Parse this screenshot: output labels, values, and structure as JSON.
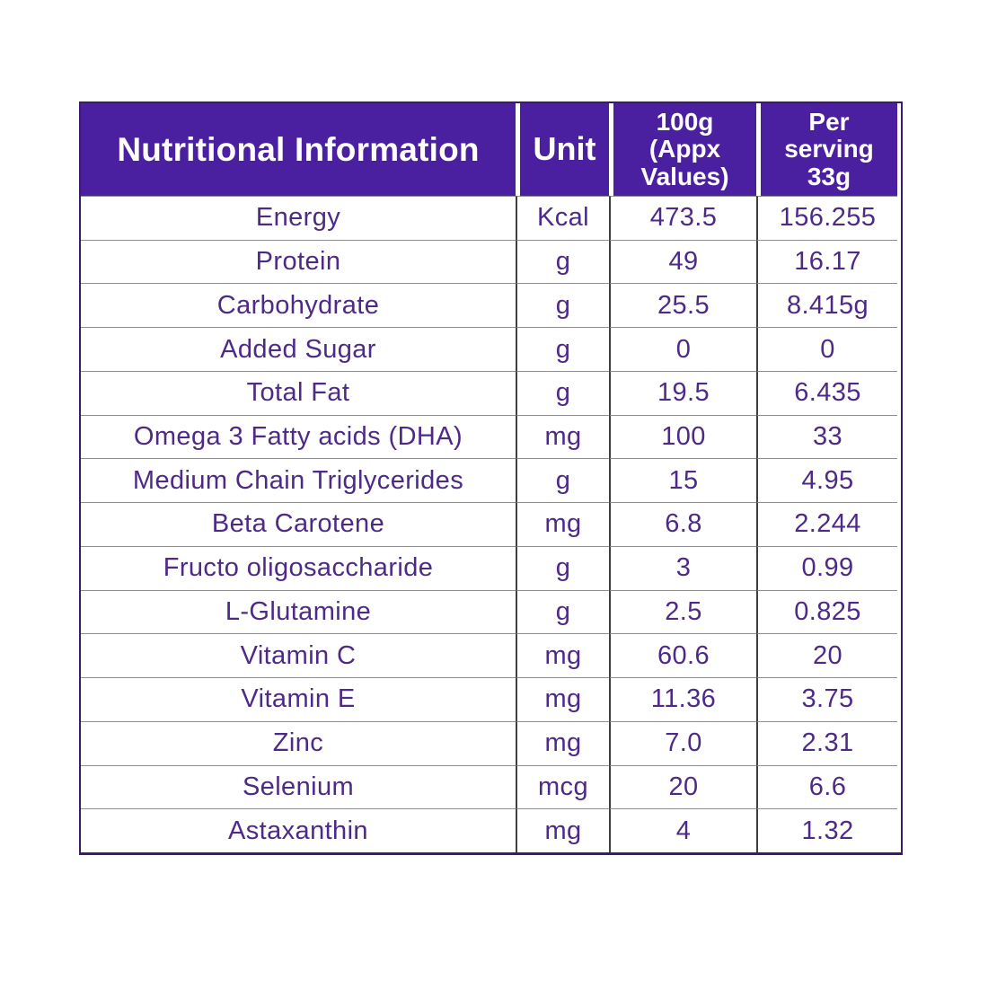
{
  "colors": {
    "header_bg": "#4a1fa0",
    "body_text": "#4e2a87",
    "outer_border": "#3c1a70",
    "row_line": "#8e8e8e",
    "col_line": "#3f3f3f"
  },
  "header": {
    "col1": "Nutritional Information",
    "col2": "Unit",
    "col3": "100g\n(Appx\nValues)",
    "col4": "Per\nserving\n33g"
  },
  "rows": [
    {
      "name": "Energy",
      "unit": "Kcal",
      "per100g": "473.5",
      "per_serving": "156.255"
    },
    {
      "name": "Protein",
      "unit": "g",
      "per100g": "49",
      "per_serving": "16.17"
    },
    {
      "name": "Carbohydrate",
      "unit": "g",
      "per100g": "25.5",
      "per_serving": "8.415g"
    },
    {
      "name": "Added Sugar",
      "unit": "g",
      "per100g": "0",
      "per_serving": "0"
    },
    {
      "name": "Total Fat",
      "unit": "g",
      "per100g": "19.5",
      "per_serving": "6.435"
    },
    {
      "name": "Omega 3 Fatty acids (DHA)",
      "unit": "mg",
      "per100g": "100",
      "per_serving": "33"
    },
    {
      "name": "Medium Chain Triglycerides",
      "unit": "g",
      "per100g": "15",
      "per_serving": "4.95"
    },
    {
      "name": "Beta Carotene",
      "unit": "mg",
      "per100g": "6.8",
      "per_serving": "2.244"
    },
    {
      "name": "Fructo oligosaccharide",
      "unit": "g",
      "per100g": "3",
      "per_serving": "0.99"
    },
    {
      "name": "L-Glutamine",
      "unit": "g",
      "per100g": "2.5",
      "per_serving": "0.825"
    },
    {
      "name": "Vitamin C",
      "unit": "mg",
      "per100g": "60.6",
      "per_serving": "20"
    },
    {
      "name": "Vitamin E",
      "unit": "mg",
      "per100g": "11.36",
      "per_serving": "3.75"
    },
    {
      "name": "Zinc",
      "unit": "mg",
      "per100g": "7.0",
      "per_serving": "2.31"
    },
    {
      "name": "Selenium",
      "unit": "mcg",
      "per100g": "20",
      "per_serving": "6.6"
    },
    {
      "name": "Astaxanthin",
      "unit": "mg",
      "per100g": "4",
      "per_serving": "1.32"
    }
  ]
}
